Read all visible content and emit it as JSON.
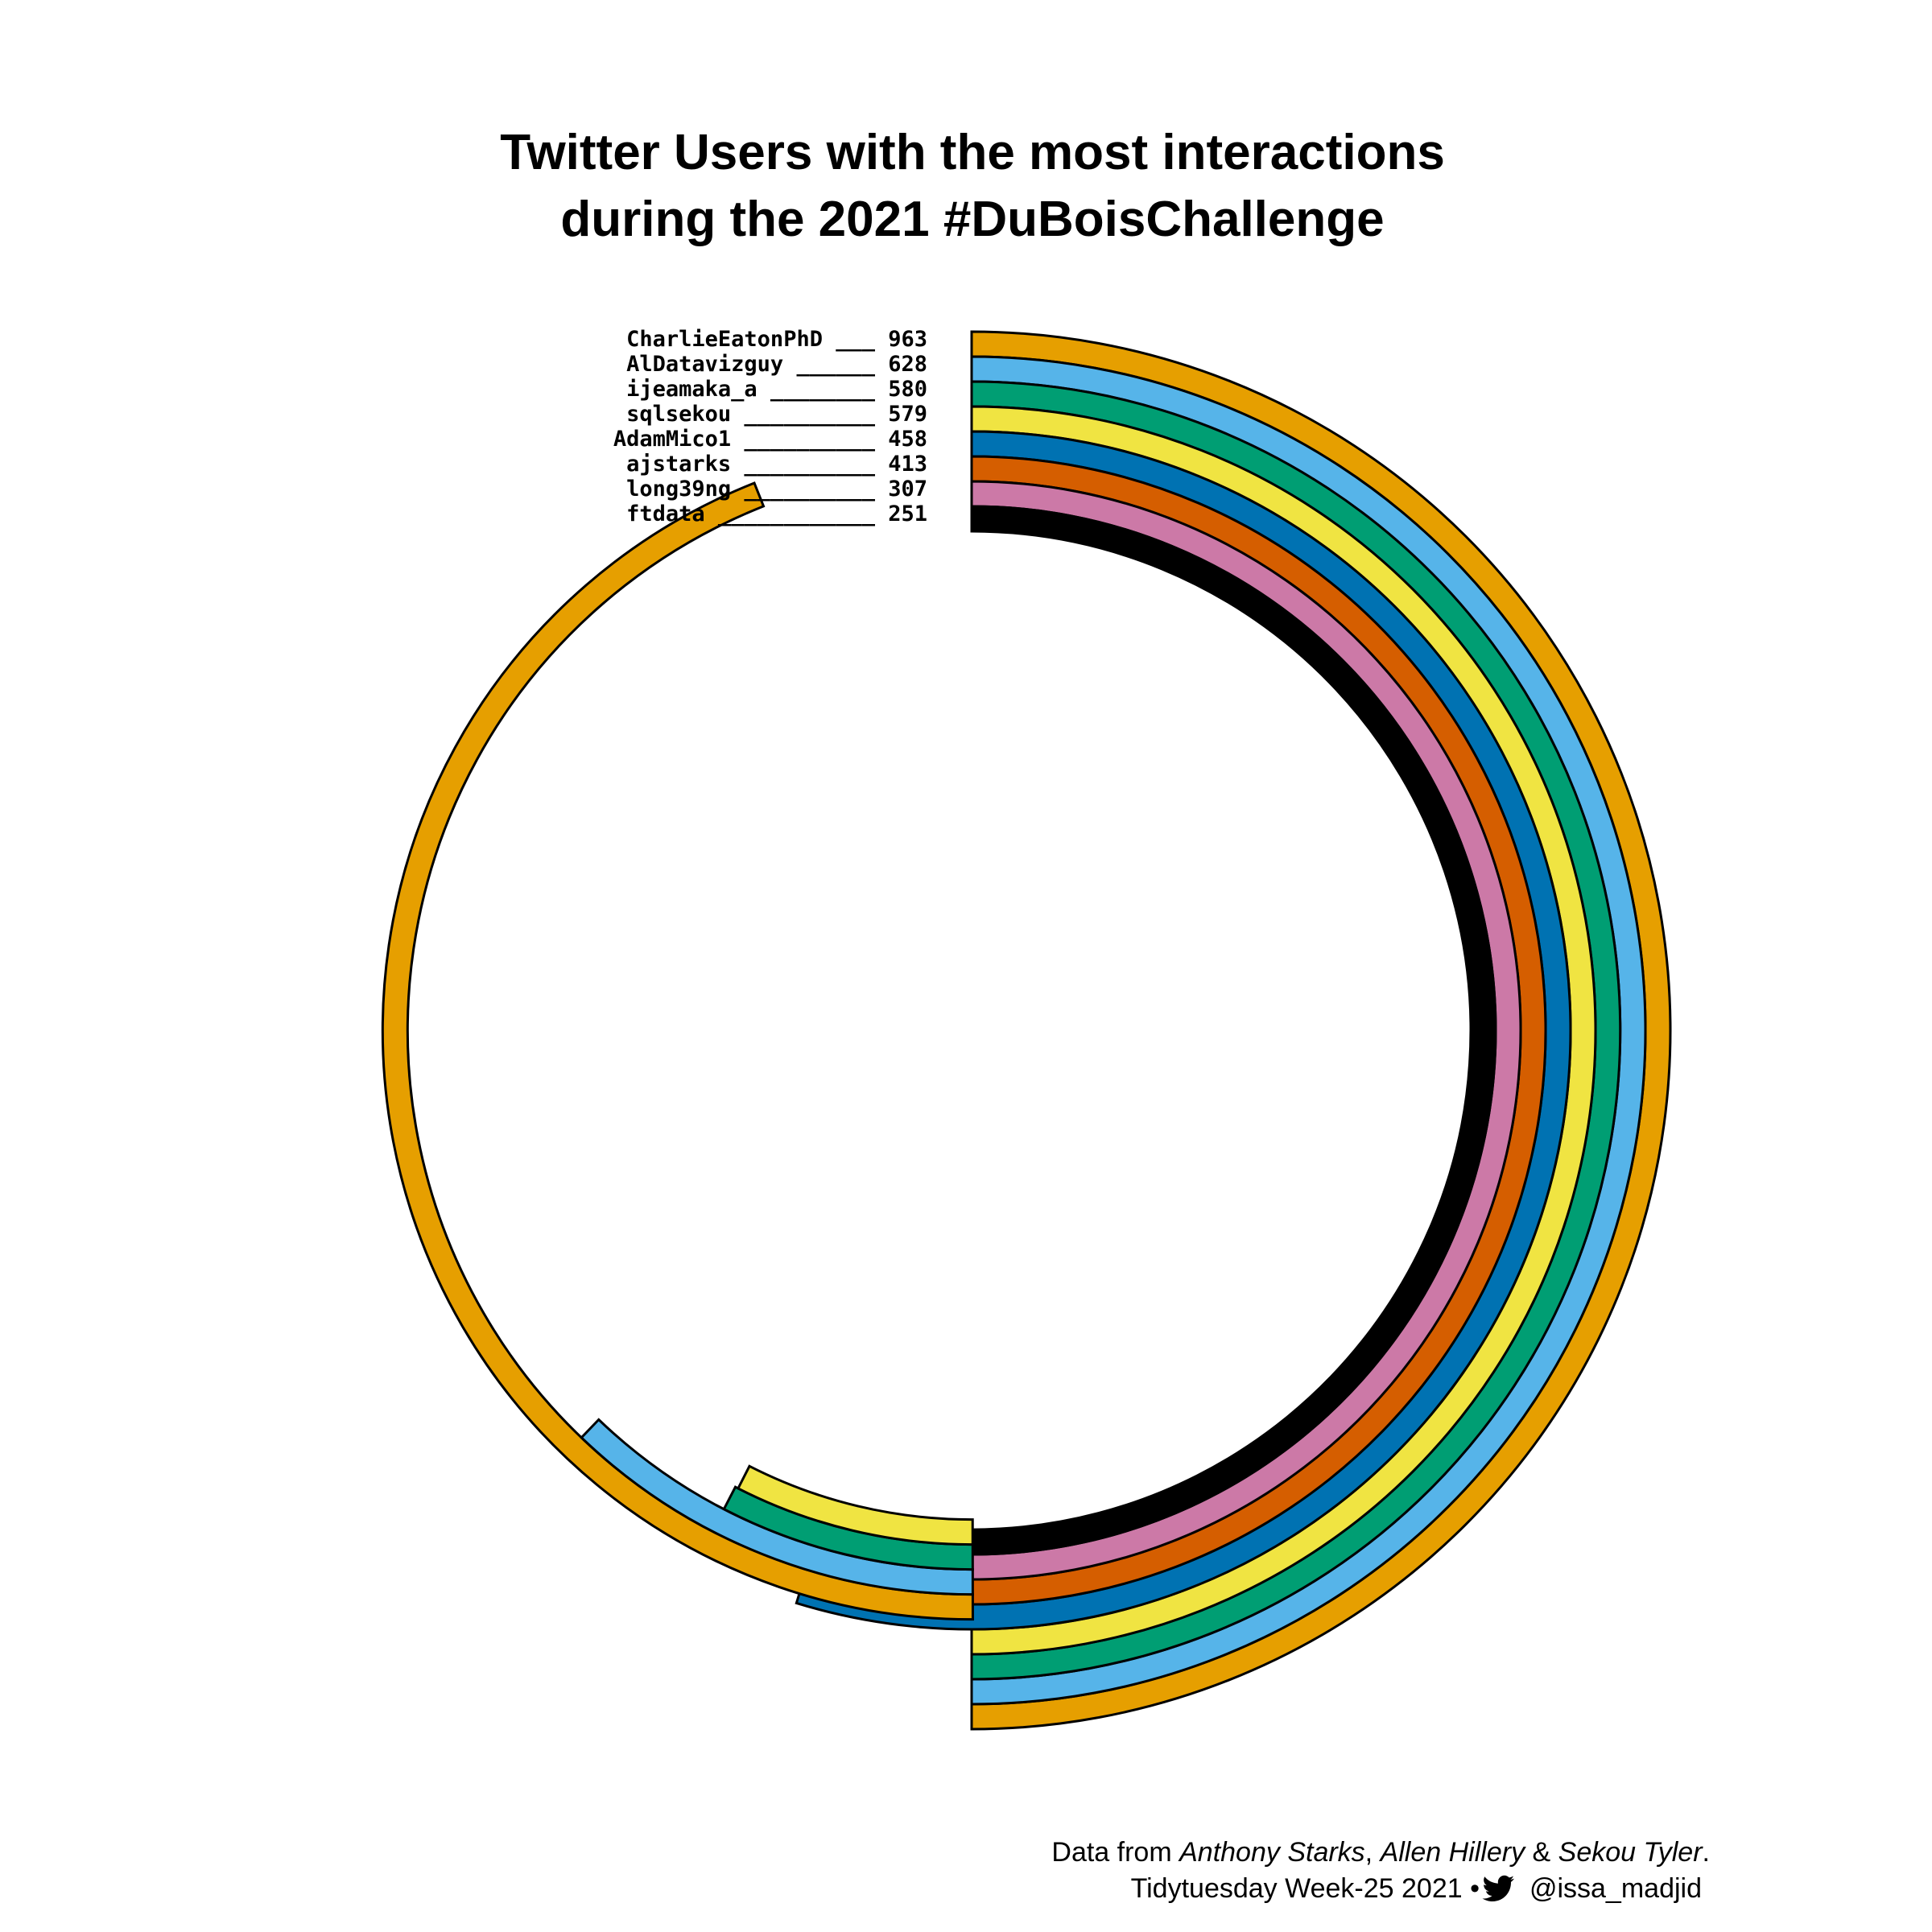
{
  "title_lines": [
    "Twitter Users with the most interactions",
    "during the 2021 #DuBoisChallenge"
  ],
  "caption": {
    "line1_prefix": "Data from ",
    "line1_names": [
      "Anthony Starks",
      "Allen Hillery",
      "Sekou Tyler"
    ],
    "line1_sep1": ", ",
    "line1_sep2": " & ",
    "line1_suffix": ".",
    "line2_text": "Tidytuesday Week-25 2021 • ",
    "line2_handle": "@issa_madjid",
    "twitter_icon": "twitter-bird-icon"
  },
  "chart_data": {
    "type": "radial-bar",
    "categories": [
      "CharlieEatonPhD",
      "AlDatavizguy",
      "ijeamaka_a",
      "sqlsekou",
      "AdamMico1",
      "ajstarks",
      "long39ng",
      "ftdata"
    ],
    "label_fillers": [
      "___",
      "______",
      "________",
      "__________",
      "__________",
      "__________",
      "__________",
      "____________"
    ],
    "values": [
      963,
      628,
      580,
      579,
      458,
      413,
      307,
      251
    ],
    "colors": [
      "#E69F00",
      "#56B4E9",
      "#009E73",
      "#F0E442",
      "#0072B2",
      "#D55E00",
      "#CC79A7",
      "#000000"
    ],
    "outline_color": "#000000",
    "inner_ring_cycle": 1000
  }
}
